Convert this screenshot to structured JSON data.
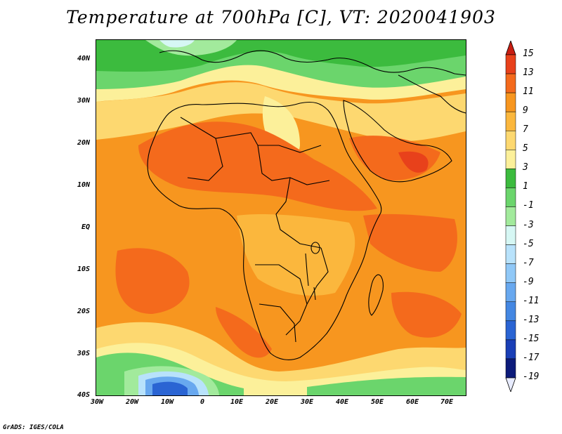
{
  "title": "Temperature at 700hPa [C], VT: 2020041903",
  "credit": "GrADS: IGES/COLA",
  "lat_labels": [
    "40N",
    "30N",
    "20N",
    "10N",
    "EQ",
    "10S",
    "20S",
    "30S",
    "40S"
  ],
  "lon_labels": [
    "30W",
    "20W",
    "10W",
    "0",
    "10E",
    "20E",
    "30E",
    "40E",
    "50E",
    "60E",
    "70E"
  ],
  "colorbar": {
    "labels": [
      "15",
      "13",
      "11",
      "9",
      "7",
      "5",
      "3",
      "1",
      "-1",
      "-3",
      "-5",
      "-7",
      "-9",
      "-11",
      "-13",
      "-15",
      "-17",
      "-19"
    ],
    "colors": [
      "#c81e12",
      "#e8411b",
      "#f46a1c",
      "#f7961f",
      "#fbb73d",
      "#fdd870",
      "#fcf09a",
      "#3cbb3e",
      "#6bd56c",
      "#a2ea9c",
      "#d6f7f4",
      "#b8e2fb",
      "#90c8f7",
      "#68a8ef",
      "#4487e2",
      "#2a64d3",
      "#1a3fb6",
      "#0c1b7a",
      "#101060"
    ]
  },
  "palette": {
    "warm_13": "#e8411b",
    "warm_11": "#f46a1c",
    "warm_9": "#f7961f",
    "warm_7": "#fbb73d",
    "warm_5": "#fdd870",
    "warm_3": "#fcf09a",
    "green_1": "#3cbb3e",
    "green_m1": "#6bd56c",
    "green_m3": "#a2ea9c",
    "cyan_m5": "#d6f7f4",
    "blue_m7": "#b8e2fb",
    "blue_m9": "#90c8f7",
    "blue_m11": "#68a8ef",
    "blue_m13": "#4487e2",
    "blue_m15": "#2a64d3"
  }
}
